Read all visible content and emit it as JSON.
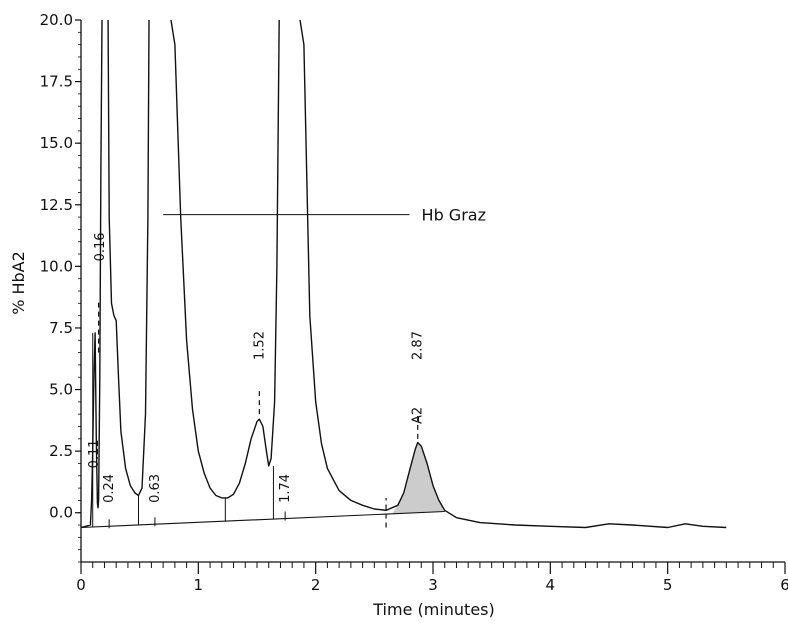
{
  "chart_data": {
    "type": "line",
    "xlabel": "Time (minutes)",
    "ylabel": "% HbA2",
    "xlim": [
      0,
      6
    ],
    "ylim": [
      -2.0,
      20.0
    ],
    "x_ticks": [
      "0",
      "1",
      "2",
      "3",
      "4",
      "5",
      "6"
    ],
    "y_ticks": [
      "0.0",
      "2.5",
      "5.0",
      "7.5",
      "10.0",
      "12.5",
      "15.0",
      "17.5",
      "20.0"
    ],
    "y_tick_values": [
      0.0,
      2.5,
      5.0,
      7.5,
      10.0,
      12.5,
      15.0,
      17.5,
      20.0
    ],
    "grid": false,
    "series": [
      {
        "x": [
          0.0,
          0.04,
          0.08,
          0.09,
          0.1,
          0.11,
          0.12,
          0.13,
          0.14,
          0.145,
          0.15,
          0.16,
          0.17,
          0.18,
          0.2,
          0.215,
          0.23,
          0.24,
          0.26,
          0.28,
          0.3,
          0.32,
          0.34,
          0.38,
          0.42,
          0.46,
          0.49,
          0.52,
          0.55,
          0.57,
          0.58,
          0.6,
          0.65,
          0.7,
          0.75,
          0.8,
          0.85,
          0.9,
          0.95,
          1.0,
          1.05,
          1.1,
          1.15,
          1.2,
          1.25,
          1.3,
          1.35,
          1.4,
          1.45,
          1.5,
          1.52,
          1.55,
          1.58,
          1.6,
          1.62,
          1.65,
          1.67,
          1.69,
          1.75,
          1.8,
          1.85,
          1.9,
          1.95,
          2.0,
          2.05,
          2.1,
          2.2,
          2.3,
          2.4,
          2.5,
          2.6,
          2.7,
          2.75,
          2.8,
          2.85,
          2.87,
          2.9,
          2.95,
          3.0,
          3.05,
          3.1,
          3.2,
          3.4,
          3.7,
          4.0,
          4.3,
          4.5,
          4.7,
          5.0,
          5.15,
          5.3,
          5.5
        ],
        "y": [
          -0.6,
          -0.55,
          -0.5,
          0.5,
          2.5,
          5.5,
          7.3,
          3.0,
          0.4,
          0.2,
          0.5,
          5.5,
          14.0,
          20.5,
          20.5,
          20.5,
          20.5,
          12.0,
          8.5,
          8.0,
          7.8,
          5.5,
          3.3,
          1.8,
          1.1,
          0.8,
          0.7,
          1.0,
          4.0,
          12.0,
          20.5,
          20.5,
          20.5,
          20.5,
          20.5,
          19.0,
          12.0,
          7.0,
          4.2,
          2.5,
          1.6,
          1.0,
          0.7,
          0.6,
          0.6,
          0.75,
          1.2,
          2.0,
          3.0,
          3.7,
          3.8,
          3.5,
          2.5,
          1.9,
          2.2,
          4.5,
          10.0,
          20.5,
          20.5,
          20.5,
          20.5,
          19.0,
          8.0,
          4.5,
          2.8,
          1.8,
          0.9,
          0.5,
          0.3,
          0.15,
          0.1,
          0.3,
          0.8,
          1.7,
          2.6,
          2.85,
          2.7,
          2.0,
          1.1,
          0.5,
          0.1,
          -0.2,
          -0.4,
          -0.5,
          -0.55,
          -0.6,
          -0.45,
          -0.5,
          -0.6,
          -0.45,
          -0.55,
          -0.6
        ]
      }
    ],
    "baseline": {
      "x": [
        0.0,
        3.1
      ],
      "y": [
        -0.6,
        0.05
      ]
    },
    "shaded_peak": {
      "name": "A2",
      "x_start": 2.65,
      "x_end": 3.1
    },
    "peak_labels": [
      {
        "text": "0.11",
        "x": 0.11,
        "y": 1.8
      },
      {
        "text": "0.16",
        "x": 0.16,
        "y": 10.2
      },
      {
        "text": "0.24",
        "x": 0.24,
        "y": 0.4
      },
      {
        "text": "0.63",
        "x": 0.63,
        "y": 0.4
      },
      {
        "text": "1.52",
        "x": 1.52,
        "y": 6.2
      },
      {
        "text": "1.74",
        "x": 1.74,
        "y": 0.4
      },
      {
        "text": "2.87",
        "x": 2.87,
        "y": 6.2
      },
      {
        "text": "A2",
        "x": 2.87,
        "y": 3.6
      }
    ],
    "peak_markers": [
      {
        "x": 0.15,
        "y1": 6.5,
        "y2": 8.6
      },
      {
        "x": 1.52,
        "y1": 4.0,
        "y2": 5.0
      },
      {
        "x": 2.87,
        "y1": 3.0,
        "y2": 4.0
      },
      {
        "x": 2.6,
        "y1": -0.6,
        "y2": 0.6
      }
    ],
    "drop_lines": [
      {
        "x": 0.1,
        "y": 7.3
      },
      {
        "x": 0.49,
        "y": 0.7
      },
      {
        "x": 1.23,
        "y": 0.6
      },
      {
        "x": 1.64,
        "y": 1.9
      }
    ],
    "baseline_ticks": [
      0.24,
      0.63,
      1.74
    ],
    "annotations": [
      {
        "text": "Hb Graz",
        "x_from": 0.7,
        "x_to": 2.8,
        "y": 12.1
      }
    ]
  }
}
